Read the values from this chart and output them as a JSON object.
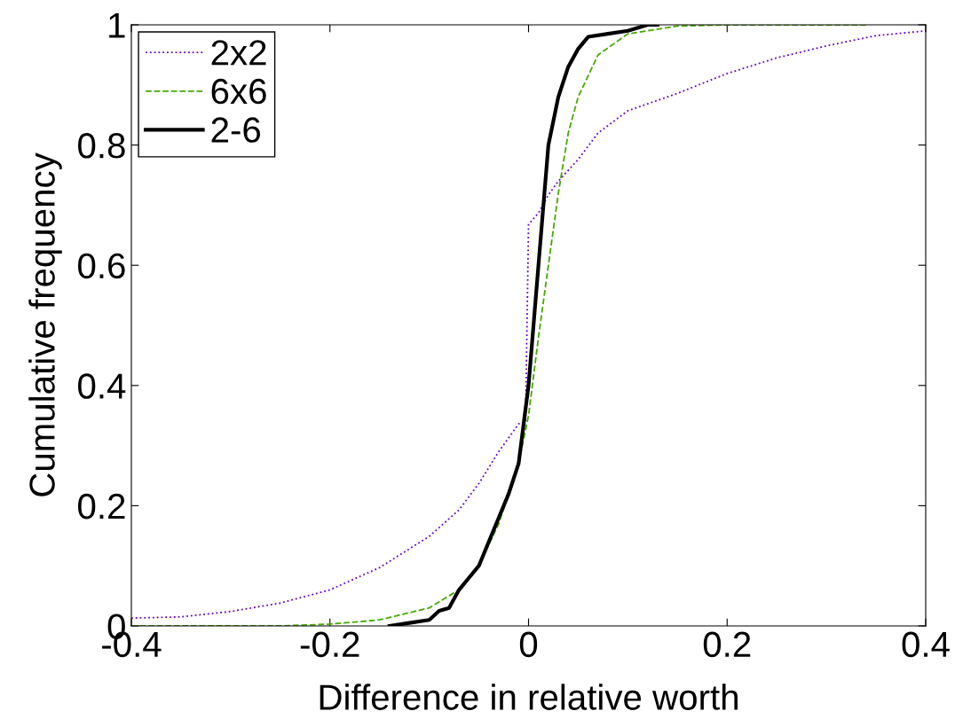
{
  "chart_data": {
    "type": "line",
    "xlabel": "Difference in relative worth",
    "ylabel": "Cumulative frequency",
    "xlim": [
      -0.4,
      0.4
    ],
    "ylim": [
      0,
      1
    ],
    "xticks": [
      -0.4,
      -0.2,
      0,
      0.2,
      0.4
    ],
    "yticks": [
      0,
      0.2,
      0.4,
      0.6,
      0.8,
      1
    ],
    "legend": "top left",
    "grid": false,
    "series": [
      {
        "name": "2x2",
        "color": "#6600cc",
        "line_style": "dotted",
        "x": [
          -0.4,
          -0.35,
          -0.3,
          -0.25,
          -0.2,
          -0.15,
          -0.1,
          -0.07,
          -0.05,
          -0.03,
          -0.01,
          -0.003,
          0,
          0.01,
          0.02,
          0.03,
          0.05,
          0.07,
          0.1,
          0.15,
          0.2,
          0.25,
          0.3,
          0.35,
          0.4
        ],
        "values": [
          0.013,
          0.015,
          0.024,
          0.038,
          0.06,
          0.097,
          0.149,
          0.193,
          0.237,
          0.29,
          0.336,
          0.34,
          0.668,
          0.687,
          0.717,
          0.74,
          0.776,
          0.82,
          0.857,
          0.886,
          0.919,
          0.945,
          0.965,
          0.982,
          0.99
        ]
      },
      {
        "name": "6x6",
        "color": "#44aa00",
        "line_style": "dashed",
        "x": [
          -0.4,
          -0.25,
          -0.2,
          -0.15,
          -0.1,
          -0.07,
          -0.05,
          -0.03,
          -0.01,
          0,
          0.01,
          0.02,
          0.03,
          0.04,
          0.05,
          0.07,
          0.1,
          0.15,
          0.2,
          0.34
        ],
        "values": [
          0,
          0,
          0.003,
          0.01,
          0.03,
          0.06,
          0.1,
          0.17,
          0.27,
          0.35,
          0.48,
          0.6,
          0.72,
          0.82,
          0.88,
          0.95,
          0.985,
          0.998,
          1,
          1
        ]
      },
      {
        "name": "2-6",
        "color": "#000000",
        "line_style": "solid",
        "x": [
          -0.14,
          -0.12,
          -0.1,
          -0.09,
          -0.08,
          -0.07,
          -0.06,
          -0.05,
          -0.04,
          -0.03,
          -0.02,
          -0.01,
          0,
          0.005,
          0.01,
          0.015,
          0.02,
          0.03,
          0.04,
          0.05,
          0.06,
          0.08,
          0.1,
          0.12,
          0.13
        ],
        "values": [
          0,
          0.005,
          0.01,
          0.025,
          0.03,
          0.06,
          0.08,
          0.1,
          0.14,
          0.18,
          0.22,
          0.27,
          0.4,
          0.5,
          0.6,
          0.7,
          0.8,
          0.88,
          0.93,
          0.96,
          0.98,
          0.985,
          0.99,
          1,
          1
        ]
      }
    ]
  }
}
